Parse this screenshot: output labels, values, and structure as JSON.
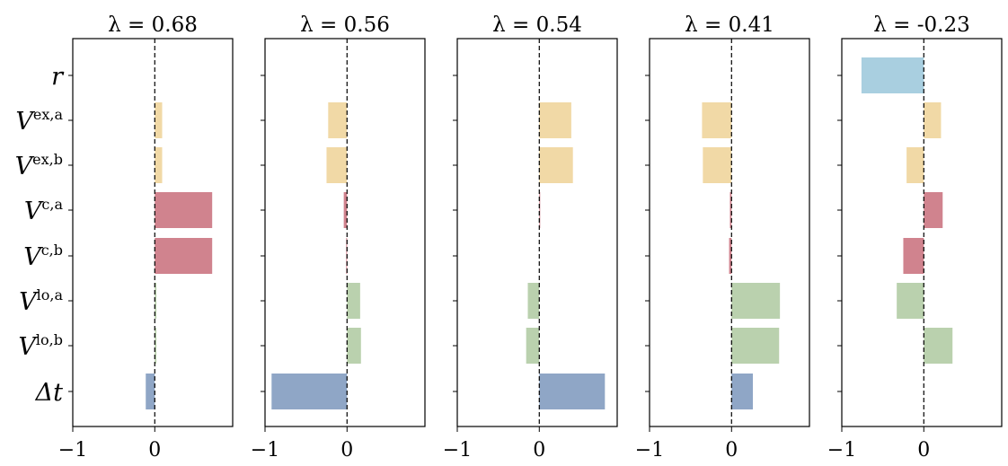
{
  "chart_data": {
    "type": "bar",
    "orientation": "horizontal",
    "categories": [
      "r",
      "V^{ex,a}",
      "V^{ex,b}",
      "V^{c,a}",
      "V^{c,b}",
      "V^{lo,a}",
      "V^{lo,b}",
      "Δt"
    ],
    "category_labels": [
      {
        "base": "r",
        "sup": ""
      },
      {
        "base": "V",
        "sup": "ex,a"
      },
      {
        "base": "V",
        "sup": "ex,b"
      },
      {
        "base": "V",
        "sup": "c,a"
      },
      {
        "base": "V",
        "sup": "c,b"
      },
      {
        "base": "V",
        "sup": "lo,a"
      },
      {
        "base": "V",
        "sup": "lo,b"
      },
      {
        "base": "Δt",
        "sup": ""
      }
    ],
    "category_groups": [
      "r",
      "ex",
      "ex",
      "c",
      "c",
      "lo",
      "lo",
      "t"
    ],
    "group_colors": {
      "r": "#a9cfe0",
      "ex": "#f1d9a6",
      "c": "#d0838e",
      "lo": "#bad1ae",
      "t": "#8fa6c6"
    },
    "xlim": [
      -1.0,
      0.95
    ],
    "xticks": [
      -1,
      0
    ],
    "xtick_labels": [
      "−1",
      "0"
    ],
    "zero_line": "dashed",
    "panels": [
      {
        "title": "λ = 0.68",
        "values": [
          0.0,
          0.09,
          0.09,
          0.7,
          0.7,
          0.02,
          0.02,
          -0.11
        ]
      },
      {
        "title": "λ = 0.56",
        "values": [
          0.0,
          -0.23,
          -0.25,
          -0.04,
          -0.01,
          0.16,
          0.17,
          -0.92
        ]
      },
      {
        "title": "λ = 0.54",
        "values": [
          0.0,
          0.39,
          0.41,
          0.01,
          0.0,
          -0.14,
          -0.16,
          0.8
        ]
      },
      {
        "title": "λ = 0.41",
        "values": [
          0.0,
          -0.36,
          -0.35,
          -0.02,
          -0.03,
          0.59,
          0.58,
          0.26
        ]
      },
      {
        "title": "λ = -0.23",
        "values": [
          -0.76,
          0.21,
          -0.21,
          0.23,
          -0.25,
          -0.33,
          0.35,
          0.0
        ]
      }
    ]
  }
}
